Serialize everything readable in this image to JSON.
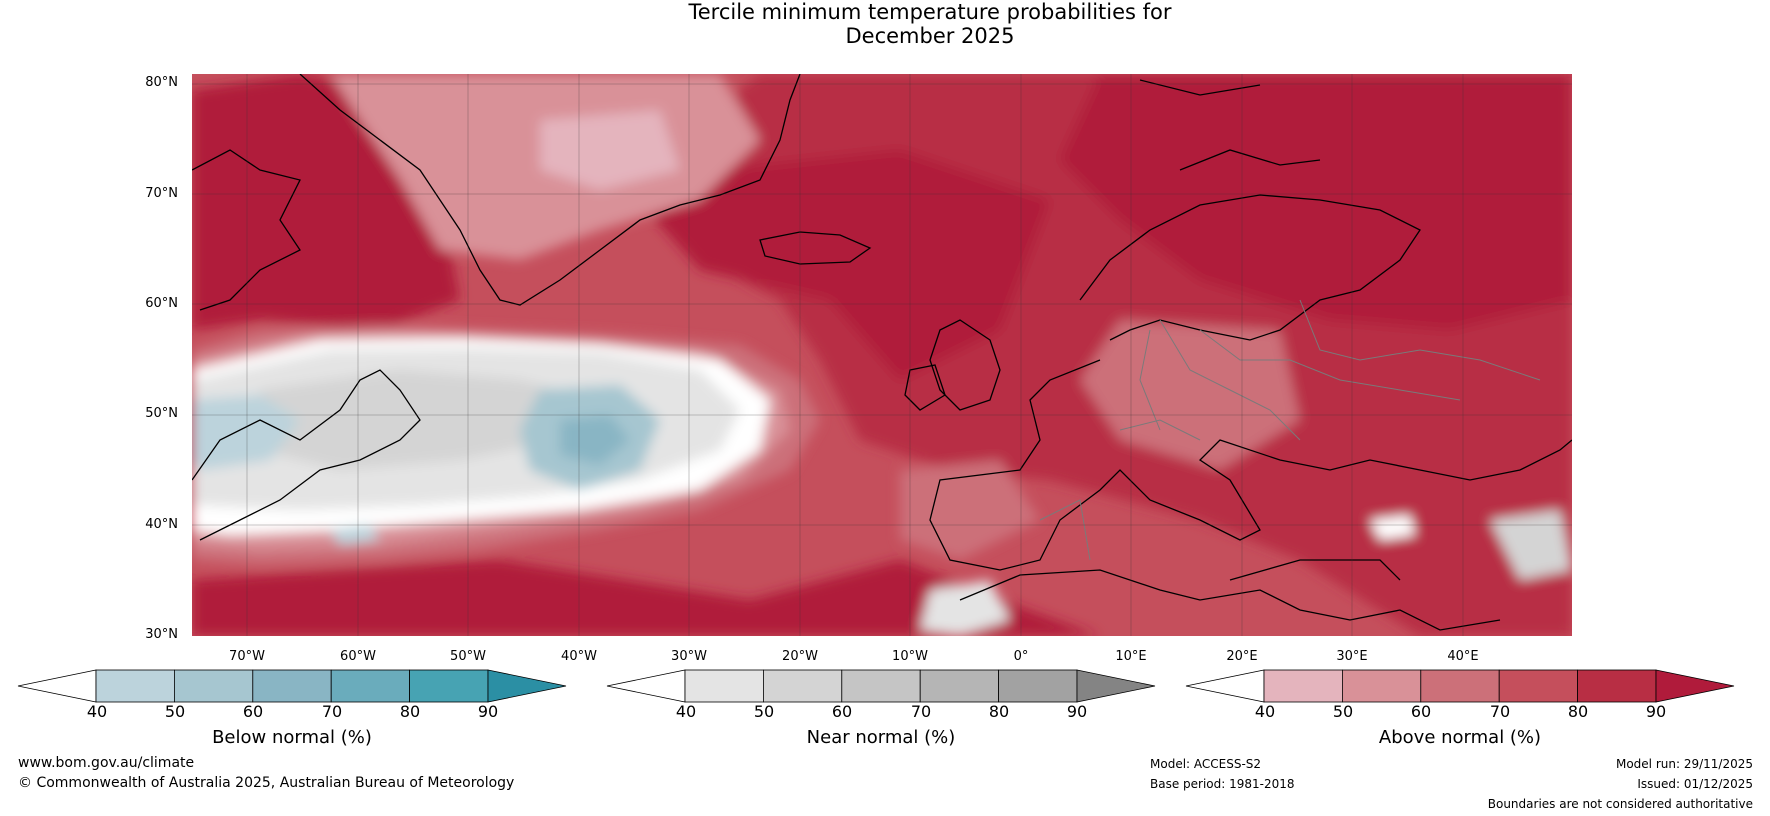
{
  "title": {
    "line1": "Tercile minimum temperature probabilities for",
    "line2": "December 2025"
  },
  "map": {
    "latitudes": [
      "80°N",
      "70°N",
      "60°N",
      "50°N",
      "40°N",
      "30°N"
    ],
    "longitudes": [
      "70°W",
      "60°W",
      "50°W",
      "40°W",
      "30°W",
      "20°W",
      "10°W",
      "0°",
      "10°E",
      "20°E",
      "30°E",
      "40°E"
    ]
  },
  "colorbars": [
    {
      "title": "Below normal (%)",
      "ticks": [
        "40",
        "50",
        "60",
        "70",
        "80",
        "90"
      ],
      "colors": [
        "#ffffff",
        "#bcd3dc",
        "#a6c6d0",
        "#89b5c4",
        "#6aacbc",
        "#47a3b3",
        "#2b8fa4"
      ]
    },
    {
      "title": "Near normal (%)",
      "ticks": [
        "40",
        "50",
        "60",
        "70",
        "80",
        "90"
      ],
      "colors": [
        "#ffffff",
        "#e4e4e4",
        "#d4d4d4",
        "#c5c5c5",
        "#b5b5b5",
        "#a2a2a2",
        "#848484"
      ]
    },
    {
      "title": "Above normal (%)",
      "ticks": [
        "40",
        "50",
        "60",
        "70",
        "80",
        "90"
      ],
      "colors": [
        "#ffffff",
        "#e4b4bd",
        "#d99198",
        "#cc7079",
        "#c54f5c",
        "#b82e44",
        "#b01b3b"
      ]
    }
  ],
  "footer": {
    "website": "www.bom.gov.au/climate",
    "copyright": "© Commonwealth of Australia 2025, Australian Bureau of Meteorology",
    "model": "Model: ACCESS-S2",
    "base_period": "Base period: 1981-2018",
    "model_run": "Model run: 29/11/2025",
    "issued": "Issued: 01/12/2025",
    "disclaimer": "Boundaries are not considered authoritative"
  }
}
